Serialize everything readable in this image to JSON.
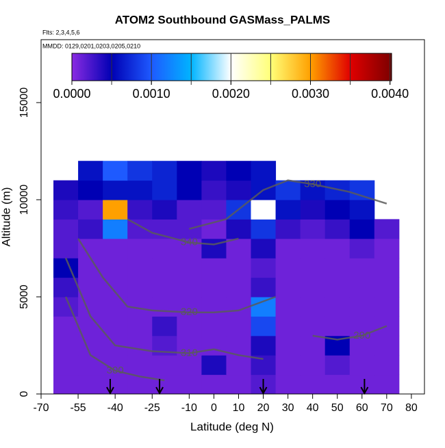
{
  "chart_data": {
    "type": "heatmap",
    "title": "ATOM2 Southbound GASMass_PALMS",
    "subtitle": "Flts: 2,3,4,5,6",
    "annotation": "MMDD: 0129,0201,0203,0205,0210",
    "xlabel": "Latitude (deg N)",
    "ylabel": "Altitude (m)",
    "xlim": [
      -70,
      85.3
    ],
    "ylim": [
      0,
      18240
    ],
    "xticks": [
      -70,
      -55,
      -40,
      -25,
      -10,
      0,
      10,
      20,
      30,
      40,
      50,
      60,
      70,
      80
    ],
    "yticks": [
      0,
      5000,
      10000,
      15000
    ],
    "lat_bins": [
      -65,
      -55,
      -45,
      -35,
      -25,
      -15,
      -5,
      5,
      15,
      25,
      35,
      45,
      55,
      65,
      75
    ],
    "alt_bins": [
      0,
      1000,
      2000,
      3000,
      4000,
      5000,
      6000,
      7000,
      8000,
      9000,
      10000,
      11000,
      12000
    ],
    "values": [
      [
        0.0001,
        0.0001,
        0.0001,
        0.0001,
        0.0001,
        0.0001,
        0.0001,
        0.0001,
        0.0002,
        0.0001,
        0.0001,
        0.0001,
        0.0001,
        0.0001
      ],
      [
        0.0001,
        0.0001,
        0.0001,
        0.0001,
        0.0001,
        0.0001,
        0.0004,
        0.0001,
        0.0003,
        0.0001,
        0.0001,
        0.0002,
        0.0001,
        0.0001
      ],
      [
        0.0001,
        0.0001,
        0.0001,
        0.0001,
        0.0002,
        0.0001,
        0.0001,
        0.0001,
        0.0004,
        0.0001,
        0.0001,
        0.0005,
        0.0001,
        0.0001
      ],
      [
        0.0001,
        0.0001,
        0.0001,
        0.0001,
        0.0003,
        0.0001,
        0.0001,
        0.0001,
        0.0009,
        0.0001,
        0.0001,
        0.0001,
        0.0001,
        0.0001
      ],
      [
        0.0002,
        0.0001,
        0.0001,
        0.0001,
        0.0001,
        0.0001,
        0.0001,
        0.0001,
        0.0012,
        0.0001,
        0.0001,
        0.0001,
        0.0001,
        0.0001
      ],
      [
        0.0003,
        0.0001,
        0.0001,
        0.0001,
        0.0001,
        0.0001,
        0.0001,
        0.0001,
        0.0003,
        0.0001,
        0.0001,
        0.0001,
        0.0001,
        0.0001
      ],
      [
        0.0005,
        0.0001,
        0.0001,
        0.0001,
        0.0001,
        0.0001,
        0.0001,
        0.0001,
        0.0002,
        0.0001,
        0.0001,
        0.0001,
        0.0001,
        0.0001
      ],
      [
        0.0002,
        0.0001,
        0.0001,
        0.0001,
        0.0001,
        0.0001,
        0.0004,
        0.0001,
        0.0004,
        0.0001,
        0.0001,
        0.0001,
        0.0002,
        0.0001
      ],
      [
        0.0002,
        0.0003,
        0.0012,
        0.0002,
        0.0002,
        0.0002,
        0.0001,
        0.0004,
        0.0008,
        0.0003,
        0.0002,
        0.0003,
        0.0005,
        0.0002
      ],
      [
        0.0003,
        0.0002,
        0.003,
        0.0003,
        0.0004,
        0.0002,
        0.0002,
        0.0008,
        0.002,
        0.0006,
        0.0004,
        0.0005,
        0.0006,
        null
      ],
      [
        0.0004,
        0.0005,
        0.0006,
        0.0006,
        0.0007,
        0.0005,
        0.0003,
        0.0004,
        0.0006,
        0.0008,
        0.0006,
        0.0007,
        0.0008,
        null
      ],
      [
        null,
        0.0006,
        0.001,
        0.0008,
        0.0007,
        0.0005,
        0.0004,
        0.0005,
        0.0006,
        null,
        null,
        null,
        null,
        null
      ]
    ],
    "clim": [
      0,
      0.00402
    ],
    "cticks": [
      {
        "value": 0,
        "label": "0.0000"
      },
      {
        "value": 0.001,
        "label": "0.0010"
      },
      {
        "value": 0.002,
        "label": "0.0020"
      },
      {
        "value": 0.003,
        "label": "0.0030"
      },
      {
        "value": 0.004,
        "label": "0.0040"
      }
    ],
    "cbar_divisions": [
      0.0005,
      0.001,
      0.0015,
      0.002,
      0.0025,
      0.003,
      0.0035,
      0.004
    ],
    "palette": {
      "values": [
        0,
        0.0005,
        0.001,
        0.0015,
        0.002,
        0.0025,
        0.003,
        0.0035,
        0.004
      ],
      "colors": [
        "#8a2be2",
        "#0000b4",
        "#1e5aff",
        "#00b4ff",
        "#ffffff",
        "#ffff78",
        "#ffa000",
        "#e00000",
        "#800000"
      ]
    },
    "contour_color": "#5a5a5a",
    "contours": [
      {
        "level": 290,
        "x": [
          40,
          50,
          60,
          70
        ],
        "y": [
          3000,
          2800,
          3000,
          3500
        ]
      },
      {
        "level": 300,
        "x": [
          -60,
          -50,
          -40,
          -30,
          -20
        ],
        "y": [
          5000,
          2000,
          1200,
          900,
          700
        ]
      },
      {
        "level": 310,
        "x": [
          -60,
          -50,
          -40,
          -25,
          -10,
          0,
          10,
          20
        ],
        "y": [
          7000,
          4000,
          2500,
          2200,
          2100,
          2300,
          2000,
          1800
        ]
      },
      {
        "level": 320,
        "x": [
          -55,
          -45,
          -35,
          -25,
          -10,
          0,
          10,
          25
        ],
        "y": [
          8000,
          6000,
          4500,
          4300,
          4200,
          4200,
          4300,
          5000
        ]
      },
      {
        "level": 330,
        "x": [
          -10,
          5,
          20,
          30,
          40,
          55,
          65,
          70
        ],
        "y": [
          8500,
          9000,
          10500,
          11000,
          10800,
          10400,
          10000,
          9800
        ]
      },
      {
        "level": 340,
        "x": [
          -35,
          -25,
          -10,
          0,
          10
        ],
        "y": [
          9000,
          8300,
          7800,
          7700,
          8000
        ]
      }
    ],
    "arrows": [
      -42,
      -22,
      20,
      61
    ]
  }
}
